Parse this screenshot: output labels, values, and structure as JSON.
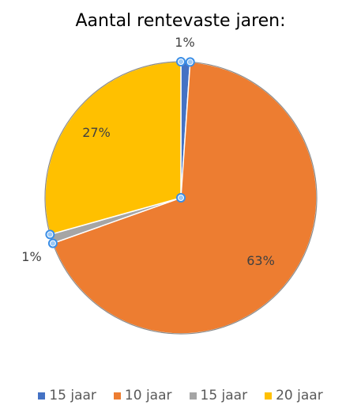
{
  "chart_data": {
    "type": "pie",
    "title": "Aantal rentevaste jaren:",
    "series": [
      {
        "name": "15 jaar",
        "value": 1,
        "label": "1%",
        "color": "#4472C4"
      },
      {
        "name": "10 jaar",
        "value": 63,
        "label": "63%",
        "color": "#ED7D31"
      },
      {
        "name": "15 jaar",
        "value": 1,
        "label": "1%",
        "color": "#A5A5A5"
      },
      {
        "name": "20 jaar",
        "value": 27,
        "label": "27%",
        "color": "#FFC000"
      }
    ],
    "legend_position": "bottom",
    "selected": true
  }
}
